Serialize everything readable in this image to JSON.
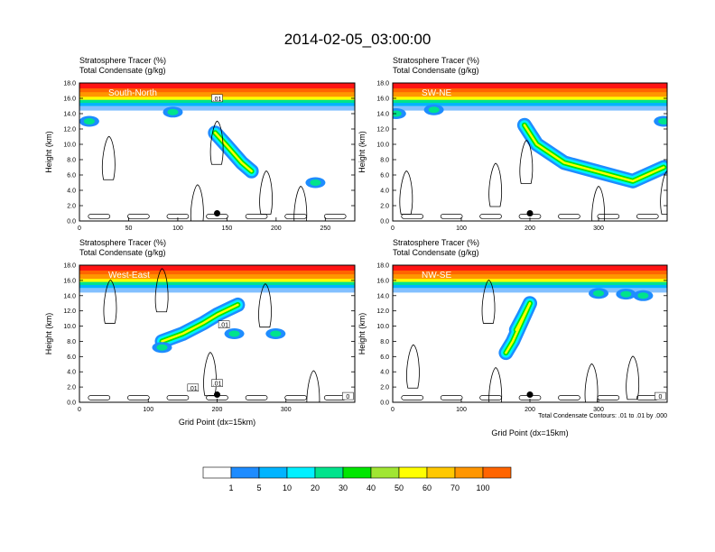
{
  "figure": {
    "title": "2014-02-05_03:00:00",
    "contour_note": "Total Condensate Contours: .01 to .01 by .000"
  },
  "colors": {
    "levels": [
      "#ffffff",
      "#1e8cff",
      "#00b4ff",
      "#00f0ff",
      "#00e38c",
      "#00e600",
      "#a0e632",
      "#ffff00",
      "#ffc800",
      "#ff9600",
      "#ff6400",
      "#ff1414"
    ],
    "station_dot": "#000000",
    "contour": "#000000"
  },
  "colorbar": {
    "labels": [
      "1",
      "5",
      "10",
      "20",
      "30",
      "40",
      "50",
      "60",
      "70",
      "100"
    ]
  },
  "chart_data": [
    {
      "type": "heatmap",
      "label": "South-North",
      "title_lines": [
        "Stratosphere Tracer   (%)",
        "Total Condensate   (g/kg)"
      ],
      "ylabel": "Height (km)",
      "xlabel": "",
      "xlim": [
        0,
        280
      ],
      "ylim": [
        0,
        18
      ],
      "xticks": [
        0,
        50,
        100,
        150,
        200,
        250
      ],
      "yticks": [
        "0.0",
        "2.0",
        "4.0",
        "6.0",
        "8.0",
        "10.0",
        "12.0",
        "14.0",
        "16.0",
        "18.0"
      ],
      "marker": [
        140,
        1.0
      ],
      "plume": [
        [
          138,
          11.5
        ],
        [
          150,
          9.8
        ],
        [
          165,
          7.6
        ],
        [
          175,
          6.5
        ]
      ],
      "blobs": [
        [
          10,
          13
        ],
        [
          240,
          5
        ],
        [
          95,
          14.2
        ]
      ],
      "cloud_loops": [
        [
          140,
          9.5
        ],
        [
          30,
          7.5
        ],
        [
          190,
          3.0
        ],
        [
          120,
          1.2
        ],
        [
          225,
          1.0
        ]
      ],
      "contour_labels": [
        {
          "x": 140,
          "y": 15.9,
          "text": ".01"
        }
      ]
    },
    {
      "type": "heatmap",
      "label": "SW-NE",
      "title_lines": [
        "Stratosphere Tracer   (%)",
        "Total Condensate   (g/kg)"
      ],
      "ylabel": "Height (km)",
      "xlabel": "",
      "xlim": [
        0,
        400
      ],
      "ylim": [
        0,
        18
      ],
      "xticks": [
        0,
        100,
        200,
        300
      ],
      "yticks": [
        "0.0",
        "2.0",
        "4.0",
        "6.0",
        "8.0",
        "10.0",
        "12.0",
        "14.0",
        "16.0",
        "18.0"
      ],
      "marker": [
        200,
        1.0
      ],
      "plume": [
        [
          192,
          12.5
        ],
        [
          210,
          10.0
        ],
        [
          250,
          7.6
        ],
        [
          300,
          6.4
        ],
        [
          350,
          5.2
        ],
        [
          395,
          7.0
        ]
      ],
      "blobs": [
        [
          5,
          14
        ],
        [
          395,
          13
        ],
        [
          60,
          14.5
        ]
      ],
      "cloud_loops": [
        [
          195,
          7.0
        ],
        [
          20,
          3.0
        ],
        [
          150,
          4.0
        ],
        [
          300,
          1.0
        ],
        [
          400,
          3.0
        ]
      ],
      "contour_labels": []
    },
    {
      "type": "heatmap",
      "label": "West-East",
      "title_lines": [
        "Stratosphere Tracer   (%)",
        "Total Condensate   (g/kg)"
      ],
      "ylabel": "Height (km)",
      "xlabel": "Grid Point (dx=15km)",
      "xlim": [
        0,
        400
      ],
      "ylim": [
        0,
        18
      ],
      "xticks": [
        0,
        100,
        200,
        300
      ],
      "yticks": [
        "0.0",
        "2.0",
        "4.0",
        "6.0",
        "8.0",
        "10.0",
        "12.0",
        "14.0",
        "16.0",
        "18.0"
      ],
      "marker": [
        200,
        1.0
      ],
      "plume": [
        [
          120,
          8.0
        ],
        [
          150,
          9.0
        ],
        [
          180,
          10.4
        ],
        [
          200,
          11.5
        ],
        [
          230,
          12.8
        ]
      ],
      "blobs": [
        [
          225,
          9.0
        ],
        [
          285,
          9.0
        ],
        [
          120,
          7.2
        ]
      ],
      "cloud_loops": [
        [
          45,
          12.5
        ],
        [
          190,
          3.0
        ],
        [
          270,
          12.0
        ],
        [
          120,
          14.0
        ],
        [
          340,
          0.6
        ]
      ],
      "contour_labels": [
        {
          "x": 210,
          "y": 10.1,
          "text": ".01"
        },
        {
          "x": 165,
          "y": 1.8,
          "text": ".01"
        },
        {
          "x": 200,
          "y": 2.4,
          "text": ".01"
        },
        {
          "x": 390,
          "y": 0.7,
          "text": "0"
        }
      ]
    },
    {
      "type": "heatmap",
      "label": "NW-SE",
      "title_lines": [
        "Stratosphere Tracer   (%)",
        "Total Condensate   (g/kg)"
      ],
      "ylabel": "Height (km)",
      "xlabel": "Grid Point (dx=15km)",
      "xlim": [
        0,
        400
      ],
      "ylim": [
        0,
        18
      ],
      "xticks": [
        0,
        100,
        200,
        300
      ],
      "yticks": [
        "0.0",
        "2.0",
        "4.0",
        "6.0",
        "8.0",
        "10.0",
        "12.0",
        "14.0",
        "16.0",
        "18.0"
      ],
      "marker": [
        200,
        1.0
      ],
      "plume": [
        [
          180,
          9.5
        ],
        [
          190,
          11.2
        ],
        [
          200,
          13.0
        ],
        [
          175,
          8.0
        ],
        [
          165,
          6.5
        ]
      ],
      "blobs": [
        [
          365,
          14.0
        ],
        [
          340,
          14.2
        ],
        [
          300,
          14.3
        ]
      ],
      "cloud_loops": [
        [
          140,
          12.5
        ],
        [
          30,
          4.0
        ],
        [
          150,
          1.0
        ],
        [
          290,
          1.5
        ],
        [
          350,
          2.5
        ]
      ],
      "contour_labels": [
        {
          "x": 390,
          "y": 0.7,
          "text": "0"
        }
      ]
    }
  ]
}
